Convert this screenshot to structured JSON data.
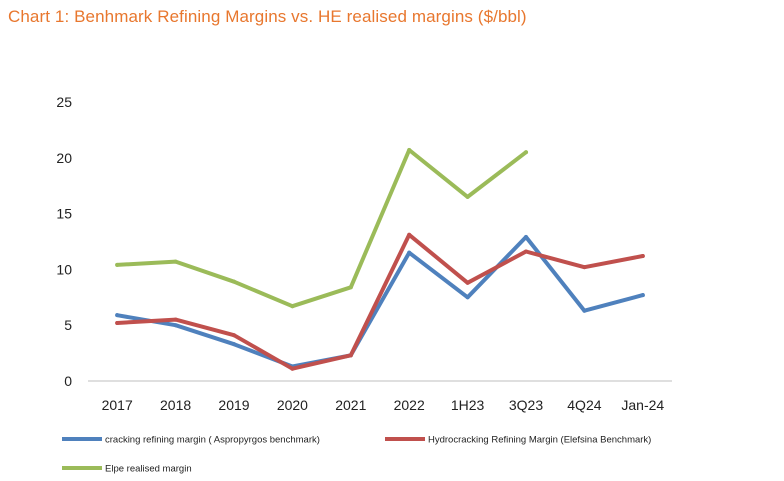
{
  "chart_data": {
    "type": "line",
    "title": "Chart 1: Benhmark Refining Margins vs. HE realised margins ($/bbl)",
    "xlabel": "",
    "ylabel": "",
    "categories": [
      "2017",
      "2018",
      "2019",
      "2020",
      "2021",
      "2022",
      "1H23",
      "3Q23",
      "4Q24",
      "Jan-24"
    ],
    "ylim": [
      0,
      25
    ],
    "yticks": [
      0,
      5,
      10,
      15,
      20,
      25
    ],
    "grid": false,
    "legend_position": "bottom",
    "series": [
      {
        "name": "cracking refining margin ( Aspropyrgos benchmark)",
        "color": "#4f81bd",
        "values": [
          5.9,
          5.0,
          3.3,
          1.3,
          2.3,
          11.5,
          7.5,
          12.9,
          6.3,
          7.7
        ]
      },
      {
        "name": "Hydrocracking Refining Margin (Elefsina Benchmark)",
        "color": "#c0504d",
        "values": [
          5.2,
          5.5,
          4.1,
          1.1,
          2.3,
          13.1,
          8.8,
          11.6,
          10.2,
          11.2
        ]
      },
      {
        "name": "Elpe realised margin",
        "color": "#9bbb59",
        "values": [
          10.4,
          10.7,
          8.9,
          6.7,
          8.4,
          20.7,
          16.5,
          20.5,
          null,
          null
        ]
      }
    ]
  }
}
